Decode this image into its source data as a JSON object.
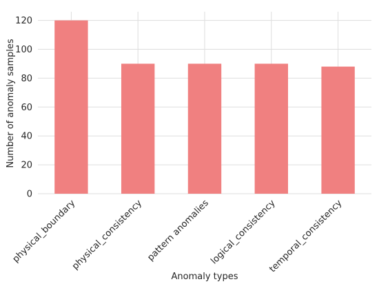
{
  "chart_data": {
    "type": "bar",
    "title": "",
    "xlabel": "Anomaly types",
    "ylabel": "Number of anomaly samples",
    "categories": [
      "physical_boundary",
      "physical_consistency",
      "pattern anomalies",
      "logical_consistency",
      "temporal_consistency"
    ],
    "values": [
      120,
      90,
      90,
      90,
      88
    ],
    "ylim": [
      0,
      126
    ],
    "yticks": [
      0,
      20,
      40,
      60,
      80,
      100,
      120
    ],
    "grid": true,
    "bar_color": "#f08080",
    "grid_color": "#dddddd",
    "text_color": "#262626"
  }
}
